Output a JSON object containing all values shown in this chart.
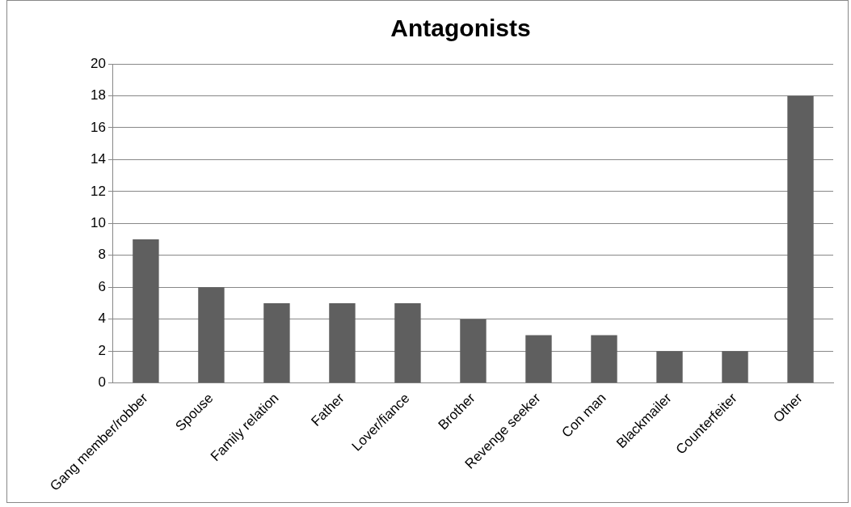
{
  "chart_data": {
    "type": "bar",
    "title": "Antagonists",
    "categories": [
      "Gang member/robber",
      "Spouse",
      "Family relation",
      "Father",
      "Lover/fiance",
      "Brother",
      "Revenge seeker",
      "Con man",
      "Blackmailer",
      "Counterfeiter",
      "Other"
    ],
    "values": [
      9,
      6,
      5,
      5,
      5,
      4,
      3,
      3,
      2,
      2,
      18
    ],
    "color": "#5f5f5f",
    "ylim": [
      0,
      20
    ],
    "yticks": [
      0,
      2,
      4,
      6,
      8,
      10,
      12,
      14,
      16,
      18,
      20
    ],
    "grid": "y",
    "legend": false
  }
}
